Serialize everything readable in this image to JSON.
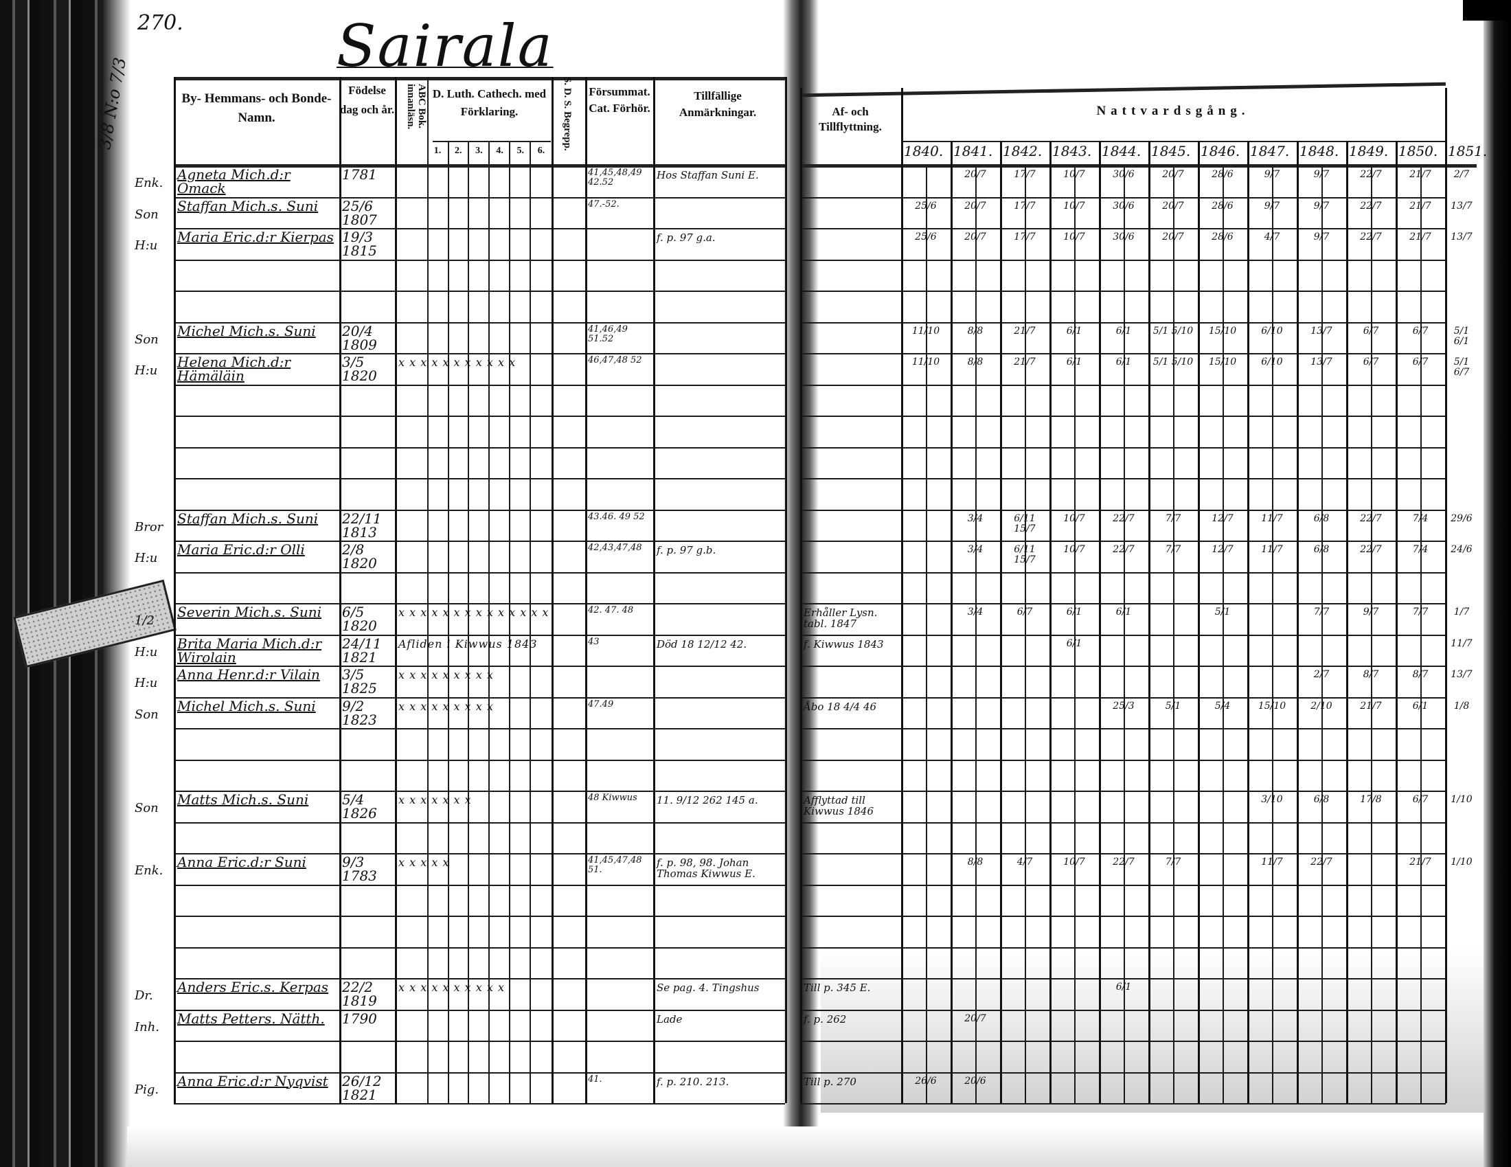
{
  "page_number": "270.",
  "village_title": "Sairala",
  "household_number": "3/8 N:o 7/3",
  "headers": {
    "name": "By- Hemmans- och Bonde-Namn.",
    "birth": "Födelse dag och år.",
    "abc": "ABC Bok. innanläsn.",
    "catechism": "D. Luth. Cathech. med Förklaring.",
    "catechism_parts": [
      "1.",
      "2.",
      "3.",
      "4.",
      "5.",
      "6."
    ],
    "sds": "S. D. S. Begrepp.",
    "forsummat": "Försummat. Cat. Förhör.",
    "remarks": "Tillfällige Anmärkningar.",
    "moves": "Af- och Tillflyttning.",
    "communion": "Nattvardsgång.",
    "years": [
      "1840.",
      "1841.",
      "1842.",
      "1843.",
      "1844.",
      "1845.",
      "1846.",
      "1847.",
      "1848.",
      "1849.",
      "1850.",
      "1851."
    ]
  },
  "rows": [
    {
      "mark": "Enk.",
      "name": "Agneta Mich.d:r Omack",
      "birth": "1781",
      "catech": "",
      "forsummat": "41,45,48,49 42.52",
      "remarks": "Hos Staffan Suni E.",
      "moves": "",
      "communion": [
        "",
        "20/7",
        "17/7",
        "10/7",
        "30/6",
        "20/7",
        "28/6",
        "9/7",
        "9/7",
        "22/7",
        "21/7",
        "2/7"
      ]
    },
    {
      "mark": "Son",
      "name": "Staffan Mich.s. Suni",
      "birth": "25/6 1807",
      "catech": "",
      "forsummat": "47.-52.",
      "remarks": "",
      "moves": "",
      "communion": [
        "25/6",
        "20/7",
        "17/7",
        "10/7",
        "30/6",
        "20/7",
        "28/6",
        "9/7",
        "9/7",
        "22/7",
        "21/7",
        "13/7"
      ]
    },
    {
      "mark": "H:u",
      "name": "Maria Eric.d:r Kierpas",
      "birth": "19/3 1815",
      "catech": "",
      "forsummat": "",
      "remarks": "f. p. 97 g.a.",
      "moves": "",
      "communion": [
        "25/6",
        "20/7",
        "17/7",
        "10/7",
        "30/6",
        "20/7",
        "28/6",
        "4/7",
        "9/7",
        "22/7",
        "21/7",
        "13/7"
      ]
    },
    {
      "mark": "",
      "name": "",
      "birth": "",
      "catech": "",
      "forsummat": "",
      "remarks": "",
      "moves": "",
      "communion": []
    },
    {
      "mark": "",
      "name": "",
      "birth": "",
      "catech": "",
      "forsummat": "",
      "remarks": "",
      "moves": "",
      "communion": []
    },
    {
      "mark": "Son",
      "name": "Michel Mich.s. Suni",
      "birth": "20/4 1809",
      "catech": "",
      "forsummat": "41,46,49 51.52",
      "remarks": "",
      "moves": "",
      "communion": [
        "11/10",
        "8/8",
        "21/7",
        "6/1",
        "6/1",
        "5/1 5/10",
        "15/10",
        "6/10",
        "13/7",
        "6/7",
        "6/7",
        "5/1 6/1"
      ]
    },
    {
      "mark": "H:u",
      "name": "Helena Mich.d:r Hämäläin",
      "birth": "3/5 1820",
      "catech": "x x x x x x x x x x x",
      "forsummat": "46,47,48 52",
      "remarks": "",
      "moves": "",
      "communion": [
        "11/10",
        "8/8",
        "21/7",
        "6/1",
        "6/1",
        "5/1 5/10",
        "15/10",
        "6/10",
        "13/7",
        "6/7",
        "6/7",
        "5/1 6/7"
      ]
    },
    {
      "mark": "",
      "name": "",
      "birth": "",
      "catech": "",
      "forsummat": "",
      "remarks": "",
      "moves": "",
      "communion": []
    },
    {
      "mark": "",
      "name": "",
      "birth": "",
      "catech": "",
      "forsummat": "",
      "remarks": "",
      "moves": "",
      "communion": []
    },
    {
      "mark": "",
      "name": "",
      "birth": "",
      "catech": "",
      "forsummat": "",
      "remarks": "",
      "moves": "",
      "communion": []
    },
    {
      "mark": "",
      "name": "",
      "birth": "",
      "catech": "",
      "forsummat": "",
      "remarks": "",
      "moves": "",
      "communion": []
    },
    {
      "mark": "Bror",
      "name": "Staffan Mich.s. Suni",
      "birth": "22/11 1813",
      "catech": "",
      "forsummat": "43.46. 49 52",
      "remarks": "",
      "moves": "",
      "communion": [
        "",
        "3/4",
        "6/11 15/7",
        "10/7",
        "22/7",
        "7/7",
        "12/7",
        "11/7",
        "6/8",
        "22/7",
        "7/4",
        "29/6"
      ]
    },
    {
      "mark": "H:u",
      "name": "Maria Eric.d:r Olli",
      "birth": "2/8 1820",
      "catech": "",
      "forsummat": "42,43,47,48",
      "remarks": "f. p. 97 g.b.",
      "moves": "",
      "communion": [
        "",
        "3/4",
        "6/11 15/7",
        "10/7",
        "22/7",
        "7/7",
        "12/7",
        "11/7",
        "6/8",
        "22/7",
        "7/4",
        "24/6"
      ]
    },
    {
      "mark": "",
      "name": "",
      "birth": "",
      "catech": "",
      "forsummat": "",
      "remarks": "",
      "moves": "",
      "communion": []
    },
    {
      "mark": "1/2",
      "name": "Severin Mich.s. Suni",
      "birth": "6/5 1820",
      "catech": "x x x x x x x x x x x x x x",
      "forsummat": "42. 47. 48",
      "remarks": "",
      "moves": "Erhåller Lysn. tabl. 1847",
      "communion": [
        "",
        "3/4",
        "6/7",
        "6/1",
        "6/1",
        "",
        "5/1",
        "",
        "7/7",
        "9/7",
        "7/7",
        "1/7"
      ]
    },
    {
      "mark": "H:u",
      "name": "Brita Maria Mich.d:r Wirolain",
      "birth": "24/11 1821",
      "catech": "Afliden i Kiwwus 1843",
      "forsummat": "43",
      "remarks": "Död 18 12/12 42.",
      "moves": "f. Kiwwus 1843",
      "communion": [
        "",
        "",
        "",
        "6/1",
        "",
        "",
        "",
        "",
        "",
        "",
        "",
        "11/7"
      ]
    },
    {
      "mark": "H:u",
      "name": "Anna Henr.d:r Vilain",
      "birth": "3/5 1825",
      "catech": "x x x x x x x x x",
      "forsummat": "",
      "remarks": "",
      "moves": "",
      "communion": [
        "",
        "",
        "",
        "",
        "",
        "",
        "",
        "",
        "2/7",
        "8/7",
        "8/7",
        "13/7"
      ]
    },
    {
      "mark": "Son",
      "name": "Michel Mich.s. Suni",
      "birth": "9/2 1823",
      "catech": "x x x x x x x x x",
      "forsummat": "47.49",
      "remarks": "",
      "moves": "Åbo 18 4/4 46",
      "communion": [
        "",
        "",
        "",
        "",
        "25/3",
        "5/1",
        "5/4",
        "15/10",
        "2/10",
        "21/7",
        "6/1",
        "1/8"
      ]
    },
    {
      "mark": "",
      "name": "",
      "birth": "",
      "catech": "",
      "forsummat": "",
      "remarks": "",
      "moves": "",
      "communion": []
    },
    {
      "mark": "",
      "name": "",
      "birth": "",
      "catech": "",
      "forsummat": "",
      "remarks": "",
      "moves": "",
      "communion": []
    },
    {
      "mark": "Son",
      "name": "Matts Mich.s. Suni",
      "birth": "5/4 1826",
      "catech": "x x x x x x x",
      "forsummat": "48 Kiwwus",
      "remarks": "11. 9/12 262 145 a.",
      "moves": "Afflyttad till Kiwwus 1846",
      "communion": [
        "",
        "",
        "",
        "",
        "",
        "",
        "",
        "3/10",
        "6/8",
        "17/8",
        "6/7",
        "1/10"
      ]
    },
    {
      "mark": "",
      "name": "",
      "birth": "",
      "catech": "",
      "forsummat": "",
      "remarks": "",
      "moves": "",
      "communion": []
    },
    {
      "mark": "Enk.",
      "name": "Anna Eric.d:r Suni",
      "birth": "9/3 1783",
      "catech": "x x x x x",
      "forsummat": "41,45,47,48 51.",
      "remarks": "f. p. 98, 98. Johan Thomas Kiwwus E.",
      "moves": "",
      "communion": [
        "",
        "8/8",
        "4/7",
        "10/7",
        "22/7",
        "7/7",
        "",
        "11/7",
        "22/7",
        "",
        "21/7",
        "1/10"
      ]
    },
    {
      "mark": "",
      "name": "",
      "birth": "",
      "catech": "",
      "forsummat": "",
      "remarks": "",
      "moves": "",
      "communion": []
    },
    {
      "mark": "",
      "name": "",
      "birth": "",
      "catech": "",
      "forsummat": "",
      "remarks": "",
      "moves": "",
      "communion": []
    },
    {
      "mark": "",
      "name": "",
      "birth": "",
      "catech": "",
      "forsummat": "",
      "remarks": "",
      "moves": "",
      "communion": []
    },
    {
      "mark": "Dr.",
      "name": "Anders Eric.s. Kerpas",
      "birth": "22/2 1819",
      "catech": "x x x x x x x x x x",
      "forsummat": "",
      "remarks": "Se pag. 4. Tingshus",
      "moves": "Till p. 345 E.",
      "communion": [
        "",
        "",
        "",
        "",
        "6/1",
        "",
        "",
        "",
        "",
        "",
        "",
        ""
      ]
    },
    {
      "mark": "Inh.",
      "name": "Matts Petters. Nätth.",
      "birth": "1790",
      "catech": "",
      "forsummat": "",
      "remarks": "Lade",
      "moves": "f. p. 262",
      "communion": [
        "",
        "20/7",
        "",
        "",
        "",
        "",
        "",
        "",
        "",
        "",
        "",
        ""
      ]
    },
    {
      "mark": "",
      "name": "",
      "birth": "",
      "catech": "",
      "forsummat": "",
      "remarks": "",
      "moves": "",
      "communion": []
    },
    {
      "mark": "Pig.",
      "name": "Anna Eric.d:r Nyqvist",
      "birth": "26/12 1821",
      "catech": "",
      "forsummat": "41.",
      "remarks": "f. p. 210. 213.",
      "moves": "Till p. 270",
      "communion": [
        "26/6",
        "20/6",
        "",
        "",
        "",
        "",
        "",
        "",
        "",
        "",
        "",
        ""
      ]
    }
  ]
}
